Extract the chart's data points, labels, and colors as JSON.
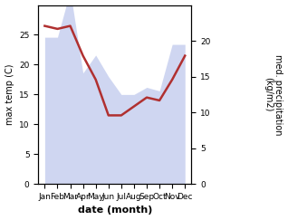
{
  "months": [
    "Jan",
    "Feb",
    "Mar",
    "Apr",
    "May",
    "Jun",
    "Jul",
    "Aug",
    "Sep",
    "Oct",
    "Nov",
    "Dec"
  ],
  "temp": [
    26.5,
    26.0,
    26.5,
    21.5,
    17.5,
    11.5,
    11.5,
    13.0,
    14.5,
    14.0,
    17.5,
    21.5
  ],
  "precip": [
    20.5,
    20.5,
    27.0,
    15.5,
    18.0,
    15.0,
    12.5,
    12.5,
    13.5,
    13.0,
    19.5,
    19.5
  ],
  "fill_color": "#b0bce8",
  "fill_alpha": 0.6,
  "line_color": "#b03030",
  "line_width": 1.8,
  "ylabel_left": "max temp (C)",
  "ylabel_right": "med. precipitation\n(kg/m2)",
  "xlabel": "date (month)",
  "ylim_left": [
    0,
    30
  ],
  "ylim_right": [
    0,
    25
  ],
  "yticks_left": [
    0,
    5,
    10,
    15,
    20,
    25
  ],
  "yticks_right": [
    0,
    5,
    10,
    15,
    20
  ],
  "figsize": [
    3.18,
    2.43
  ],
  "dpi": 100,
  "label_fontsize": 7,
  "tick_fontsize": 6.5,
  "xlabel_fontsize": 8
}
